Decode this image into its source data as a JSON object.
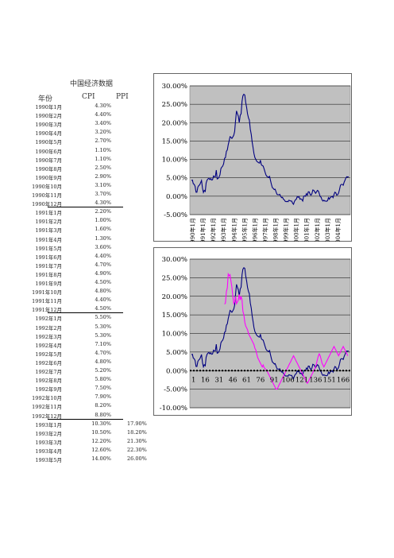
{
  "table": {
    "title": "中国经济数据",
    "headers": {
      "year": "年份",
      "cpi": "CPI",
      "ppi": "PPI"
    },
    "rows": [
      {
        "month": "1990年1月",
        "cpi": "4.30%",
        "ppi": ""
      },
      {
        "month": "1990年2月",
        "cpi": "4.40%",
        "ppi": ""
      },
      {
        "month": "1990年3月",
        "cpi": "3.40%",
        "ppi": ""
      },
      {
        "month": "1990年4月",
        "cpi": "3.20%",
        "ppi": ""
      },
      {
        "month": "1990年5月",
        "cpi": "2.70%",
        "ppi": ""
      },
      {
        "month": "1990年6月",
        "cpi": "1.10%",
        "ppi": ""
      },
      {
        "month": "1990年7月",
        "cpi": "1.10%",
        "ppi": ""
      },
      {
        "month": "1990年8月",
        "cpi": "2.50%",
        "ppi": ""
      },
      {
        "month": "1990年9月",
        "cpi": "2.90%",
        "ppi": ""
      },
      {
        "month": "1990年10月",
        "cpi": "3.10%",
        "ppi": ""
      },
      {
        "month": "1990年11月",
        "cpi": "3.70%",
        "ppi": ""
      },
      {
        "month": "1990年12月",
        "cpi": "4.30%",
        "ppi": ""
      },
      {
        "month": "1991年1月",
        "cpi": "2.20%",
        "ppi": ""
      },
      {
        "month": "1991年2月",
        "cpi": "1.00%",
        "ppi": ""
      },
      {
        "month": "1991年3月",
        "cpi": "1.60%",
        "ppi": ""
      },
      {
        "month": "1991年4月",
        "cpi": "1.30%",
        "ppi": ""
      },
      {
        "month": "1991年5月",
        "cpi": "3.60%",
        "ppi": ""
      },
      {
        "month": "1991年6月",
        "cpi": "4.40%",
        "ppi": ""
      },
      {
        "month": "1991年7月",
        "cpi": "4.70%",
        "ppi": ""
      },
      {
        "month": "1991年8月",
        "cpi": "4.90%",
        "ppi": ""
      },
      {
        "month": "1991年9月",
        "cpi": "4.50%",
        "ppi": ""
      },
      {
        "month": "1991年10月",
        "cpi": "4.80%",
        "ppi": ""
      },
      {
        "month": "1991年11月",
        "cpi": "4.40%",
        "ppi": ""
      },
      {
        "month": "1991年12月",
        "cpi": "4.50%",
        "ppi": ""
      },
      {
        "month": "1992年1月",
        "cpi": "5.50%",
        "ppi": ""
      },
      {
        "month": "1992年2月",
        "cpi": "5.30%",
        "ppi": ""
      },
      {
        "month": "1992年3月",
        "cpi": "5.30%",
        "ppi": ""
      },
      {
        "month": "1992年4月",
        "cpi": "7.10%",
        "ppi": ""
      },
      {
        "month": "1992年5月",
        "cpi": "4.70%",
        "ppi": ""
      },
      {
        "month": "1992年6月",
        "cpi": "4.80%",
        "ppi": ""
      },
      {
        "month": "1992年7月",
        "cpi": "5.20%",
        "ppi": ""
      },
      {
        "month": "1992年8月",
        "cpi": "5.80%",
        "ppi": ""
      },
      {
        "month": "1992年9月",
        "cpi": "7.50%",
        "ppi": ""
      },
      {
        "month": "1992年10月",
        "cpi": "7.90%",
        "ppi": ""
      },
      {
        "month": "1992年11月",
        "cpi": "8.20%",
        "ppi": ""
      },
      {
        "month": "1992年12月",
        "cpi": "8.80%",
        "ppi": ""
      },
      {
        "month": "1993年1月",
        "cpi": "10.30%",
        "ppi": "17.90%"
      },
      {
        "month": "1993年2月",
        "cpi": "10.50%",
        "ppi": "18.20%"
      },
      {
        "month": "1993年3月",
        "cpi": "12.20%",
        "ppi": "21.30%"
      },
      {
        "month": "1993年4月",
        "cpi": "12.60%",
        "ppi": "22.30%"
      },
      {
        "month": "1993年5月",
        "cpi": "14.00%",
        "ppi": "26.00%"
      }
    ]
  },
  "chart_data": [
    {
      "type": "line",
      "ylim": [
        -5,
        30
      ],
      "yticks": [
        "30.00%",
        "25.00%",
        "20.00%",
        "15.00%",
        "10.00%",
        "5.00%",
        "0.00%",
        "-5.00%"
      ],
      "xticks": [
        "1990年1月",
        "1991年1月",
        "1992年1月",
        "1993年1月",
        "1994年1月",
        "1995年1月",
        "1996年1月",
        "1997年1月",
        "1998年1月",
        "1999年1月",
        "2000年1月",
        "2001年1月",
        "2002年1月",
        "2003年1月",
        "2004年1月"
      ],
      "series": [
        {
          "color": "#000080",
          "values": [
            4.3,
            4.4,
            3.4,
            3.2,
            2.7,
            1.1,
            1.1,
            2.5,
            2.9,
            3.1,
            3.7,
            4.3,
            2.2,
            1.0,
            1.6,
            1.3,
            3.6,
            4.4,
            4.7,
            4.9,
            4.5,
            4.8,
            4.4,
            4.5,
            5.5,
            5.3,
            5.3,
            7.1,
            4.7,
            4.8,
            5.2,
            5.8,
            7.5,
            7.9,
            8.2,
            8.8,
            10.3,
            10.5,
            12.2,
            12.6,
            14.0,
            15.1,
            16.2,
            16.0,
            15.7,
            16.1,
            16.6,
            17.6,
            20.7,
            23.2,
            22.4,
            21.7,
            20.0,
            22.0,
            22.4,
            25.8,
            27.3,
            27.7,
            27.5,
            25.5,
            24.1,
            22.4,
            21.3,
            20.7,
            18.2,
            16.8,
            14.8,
            13.2,
            11.6,
            10.5,
            10.0,
            9.5,
            9.3,
            9.1,
            9.0,
            9.8,
            8.6,
            8.3,
            8.2,
            7.4,
            6.6,
            5.8,
            5.4,
            5.3,
            5.1,
            5.4,
            4.2,
            3.2,
            2.3,
            2.1,
            1.8,
            1.9,
            1.2,
            0.5,
            0.4,
            0.4,
            0.5,
            0.0,
            -0.4,
            -0.3,
            -0.8,
            -1.0,
            -1.4,
            -1.5,
            -1.4,
            -1.5,
            -1.1,
            -1.2,
            -1.3,
            -1.3,
            -1.9,
            -2.2,
            -1.4,
            -1.0,
            -0.8,
            -0.1,
            -0.3,
            -0.1,
            -0.8,
            -0.7,
            -0.9,
            -1.3,
            0.0,
            0.1,
            0.0,
            0.7,
            0.3,
            1.2,
            1.2,
            0.5,
            0.3,
            0.7,
            1.7,
            1.6,
            1.2,
            0.8,
            1.2,
            1.6,
            1.4,
            0.7,
            -0.1,
            -0.3,
            -1.0,
            -1.3,
            -1.1,
            -1.3,
            -1.3,
            -1.4,
            -1.2,
            -0.4,
            -0.8,
            -0.3,
            -0.2,
            0.0,
            -0.4,
            0.5,
            1.1,
            0.9,
            0.3,
            0.4,
            0.9,
            1.8,
            3.0,
            3.2,
            3.2,
            3.0,
            3.8,
            4.4,
            5.0,
            5.3,
            5.2,
            5.3
          ]
        }
      ]
    },
    {
      "type": "line",
      "ylim": [
        -10,
        30
      ],
      "yticks": [
        "30.00%",
        "25.00%",
        "20.00%",
        "15.00%",
        "10.00%",
        "5.00%",
        "0.00%",
        "-5.00%",
        "-10.00%"
      ],
      "xticks": [
        "1",
        "16",
        "31",
        "46",
        "61",
        "76",
        "91",
        "106",
        "121",
        "136",
        "151",
        "166"
      ],
      "series": [
        {
          "color": "#000080",
          "values": [
            4.3,
            4.4,
            3.4,
            3.2,
            2.7,
            1.1,
            1.1,
            2.5,
            2.9,
            3.1,
            3.7,
            4.3,
            2.2,
            1.0,
            1.6,
            1.3,
            3.6,
            4.4,
            4.7,
            4.9,
            4.5,
            4.8,
            4.4,
            4.5,
            5.5,
            5.3,
            5.3,
            7.1,
            4.7,
            4.8,
            5.2,
            5.8,
            7.5,
            7.9,
            8.2,
            8.8,
            10.3,
            10.5,
            12.2,
            12.6,
            14.0,
            15.1,
            16.2,
            16.0,
            15.7,
            16.1,
            16.6,
            17.6,
            20.7,
            23.2,
            22.4,
            21.7,
            20.0,
            22.0,
            22.4,
            25.8,
            27.3,
            27.7,
            27.5,
            25.5,
            24.1,
            22.4,
            21.3,
            20.7,
            18.2,
            16.8,
            14.8,
            13.2,
            11.6,
            10.5,
            10.0,
            9.5,
            9.3,
            9.1,
            9.0,
            9.8,
            8.6,
            8.3,
            8.2,
            7.4,
            6.6,
            5.8,
            5.4,
            5.3,
            5.1,
            5.4,
            4.2,
            3.2,
            2.3,
            2.1,
            1.8,
            1.9,
            1.2,
            0.5,
            0.4,
            0.4,
            0.5,
            0.0,
            -0.4,
            -0.3,
            -0.8,
            -1.0,
            -1.4,
            -1.5,
            -1.4,
            -1.5,
            -1.1,
            -1.2,
            -1.3,
            -1.3,
            -1.9,
            -2.2,
            -1.4,
            -1.0,
            -0.8,
            -0.1,
            -0.3,
            -0.1,
            -0.8,
            -0.7,
            -0.9,
            -1.3,
            0.0,
            0.1,
            0.0,
            0.7,
            0.3,
            1.2,
            1.2,
            0.5,
            0.3,
            0.7,
            1.7,
            1.6,
            1.2,
            0.8,
            1.2,
            1.6,
            1.4,
            0.7,
            -0.1,
            -0.3,
            -1.0,
            -1.3,
            -1.1,
            -1.3,
            -1.3,
            -1.4,
            -1.2,
            -0.4,
            -0.8,
            -0.3,
            -0.2,
            0.0,
            -0.4,
            0.5,
            1.1,
            0.9,
            0.3,
            0.4,
            0.9,
            1.8,
            3.0,
            3.2,
            3.2,
            3.0,
            3.8,
            4.4,
            5.0,
            5.3,
            5.2,
            5.3
          ]
        },
        {
          "color": "#ff00ff",
          "start_index": 36,
          "values": [
            17.9,
            18.2,
            21.3,
            22.3,
            26.0,
            25.5,
            25.8,
            24.0,
            22.5,
            20.0,
            18.0,
            18.5,
            20.0,
            18.0,
            18.5,
            19.0,
            20.5,
            19.0,
            20.0,
            19.0,
            16.0,
            15.0,
            13.0,
            12.0,
            11.5,
            11.0,
            10.0,
            9.5,
            9.0,
            8.5,
            8.0,
            7.5,
            7.0,
            6.0,
            5.5,
            4.5,
            3.5,
            3.0,
            2.5,
            2.0,
            1.5,
            1.0,
            1.5,
            0.8,
            0.5,
            0.3,
            0.0,
            -0.5,
            -1.0,
            -1.5,
            -2.0,
            -2.5,
            -3.0,
            -3.5,
            -4.0,
            -4.5,
            -5.0,
            -5.0,
            -4.6,
            -4.0,
            -3.5,
            -3.0,
            -2.5,
            -2.0,
            -1.5,
            -1.0,
            -0.5,
            0.0,
            0.5,
            1.0,
            1.5,
            2.0,
            2.5,
            3.0,
            3.5,
            4.0,
            3.5,
            3.0,
            2.5,
            2.0,
            1.5,
            1.0,
            0.5,
            0.0,
            -0.5,
            -1.0,
            -1.5,
            -2.0,
            -2.5,
            -3.0,
            -3.4,
            -3.0,
            -2.5,
            -2.0,
            -1.5,
            -1.0,
            -0.5,
            0.0,
            0.5,
            1.0,
            2.0,
            3.0,
            4.0,
            4.5,
            4.0,
            3.0,
            2.0,
            1.5,
            1.0,
            1.5,
            2.0,
            2.5,
            3.0,
            3.5,
            4.0,
            4.5,
            5.0,
            5.5,
            6.0,
            6.5,
            6.0,
            5.5,
            5.0,
            4.5,
            4.0,
            4.5,
            5.0,
            5.5,
            6.0,
            6.5,
            6.0,
            5.5,
            5.0,
            4.5,
            4.0
          ]
        },
        {
          "color": "#000000",
          "style": "dashed",
          "values": [
            0
          ]
        }
      ]
    }
  ]
}
